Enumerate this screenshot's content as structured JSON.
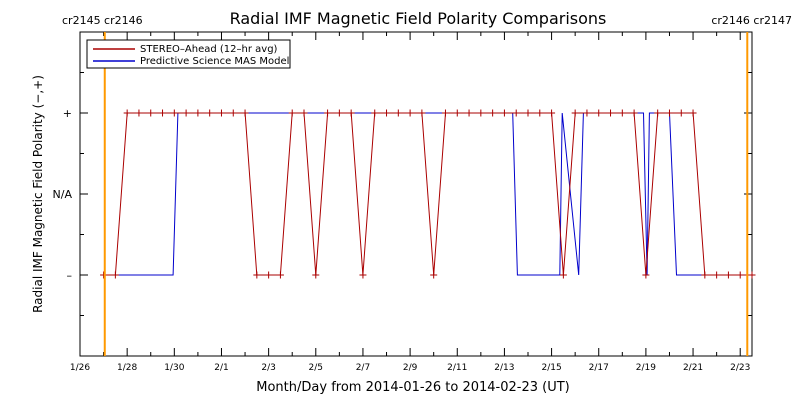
{
  "chart_data": {
    "type": "line",
    "title": "Radial IMF Magnetic Field Polarity Comparisons",
    "xlabel": "Month/Day from 2014-01-26 to 2014-02-23 (UT)",
    "ylabel": "Radial IMF Magnetic Field Polarity (−,+)",
    "x_start_date": "2014-01-26",
    "x_end_date": "2014-02-23",
    "xlim_days": [
      0,
      28.5
    ],
    "ylim": [
      -2,
      2
    ],
    "x_ticks": [
      {
        "label": "1/26",
        "day": 0
      },
      {
        "label": "1/28",
        "day": 2
      },
      {
        "label": "1/30",
        "day": 4
      },
      {
        "label": "2/1",
        "day": 6
      },
      {
        "label": "2/3",
        "day": 8
      },
      {
        "label": "2/5",
        "day": 10
      },
      {
        "label": "2/7",
        "day": 12
      },
      {
        "label": "2/9",
        "day": 14
      },
      {
        "label": "2/11",
        "day": 16
      },
      {
        "label": "2/13",
        "day": 18
      },
      {
        "label": "2/15",
        "day": 20
      },
      {
        "label": "2/17",
        "day": 22
      },
      {
        "label": "2/19",
        "day": 24
      },
      {
        "label": "2/21",
        "day": 26
      },
      {
        "label": "2/23",
        "day": 28
      }
    ],
    "y_ticks": [
      {
        "label": "+",
        "value": 1
      },
      {
        "label": "N/A",
        "value": 0
      },
      {
        "label": "–",
        "value": -1
      }
    ],
    "legend_position": "top-left",
    "carrington_markers": [
      {
        "day": 1.05,
        "label": "cr2145 cr2146",
        "side": "left",
        "color": "#ff9900"
      },
      {
        "day": 28.3,
        "label": "cr2146 cr2147",
        "side": "right",
        "color": "#ff9900"
      }
    ],
    "series": [
      {
        "name": "STEREO–Ahead (12–hr avg)",
        "color": "#aa0000",
        "markers": true,
        "points": [
          [
            1.0,
            -1
          ],
          [
            1.5,
            -1
          ],
          [
            2.0,
            1
          ],
          [
            2.5,
            1
          ],
          [
            3.0,
            1
          ],
          [
            3.5,
            1
          ],
          [
            4.0,
            1
          ],
          [
            4.5,
            1
          ],
          [
            5.0,
            1
          ],
          [
            5.5,
            1
          ],
          [
            6.0,
            1
          ],
          [
            6.5,
            1
          ],
          [
            7.0,
            1
          ],
          [
            7.5,
            -1
          ],
          [
            8.0,
            -1
          ],
          [
            8.5,
            -1
          ],
          [
            9.0,
            1
          ],
          [
            9.5,
            1
          ],
          [
            10.0,
            -1
          ],
          [
            10.5,
            1
          ],
          [
            11.0,
            1
          ],
          [
            11.5,
            1
          ],
          [
            12.0,
            -1
          ],
          [
            12.5,
            1
          ],
          [
            13.0,
            1
          ],
          [
            13.5,
            1
          ],
          [
            14.0,
            1
          ],
          [
            14.5,
            1
          ],
          [
            15.0,
            -1
          ],
          [
            15.5,
            1
          ],
          [
            16.0,
            1
          ],
          [
            16.5,
            1
          ],
          [
            17.0,
            1
          ],
          [
            17.5,
            1
          ],
          [
            18.0,
            1
          ],
          [
            18.5,
            1
          ],
          [
            19.0,
            1
          ],
          [
            19.5,
            1
          ],
          [
            20.0,
            1
          ],
          [
            20.5,
            -1
          ],
          [
            21.0,
            1
          ],
          [
            21.5,
            1
          ],
          [
            22.0,
            1
          ],
          [
            22.5,
            1
          ],
          [
            23.0,
            1
          ],
          [
            23.5,
            1
          ],
          [
            24.0,
            -1
          ],
          [
            24.5,
            1
          ],
          [
            25.0,
            1
          ],
          [
            25.5,
            1
          ],
          [
            26.0,
            1
          ],
          [
            26.5,
            -1
          ],
          [
            27.0,
            -1
          ],
          [
            27.5,
            -1
          ],
          [
            28.0,
            -1
          ],
          [
            28.5,
            -1
          ]
        ]
      },
      {
        "name": "Predictive Science MAS Model",
        "color": "#0000cc",
        "markers": false,
        "points": [
          [
            1.0,
            -1
          ],
          [
            3.95,
            -1
          ],
          [
            4.15,
            1
          ],
          [
            18.35,
            1
          ],
          [
            18.55,
            -1
          ],
          [
            20.35,
            -1
          ],
          [
            20.45,
            1
          ],
          [
            21.15,
            -1
          ],
          [
            21.35,
            1
          ],
          [
            23.9,
            1
          ],
          [
            24.05,
            -1
          ],
          [
            24.15,
            1
          ],
          [
            25.0,
            1
          ],
          [
            25.3,
            -1
          ],
          [
            28.5,
            -1
          ]
        ]
      }
    ]
  }
}
